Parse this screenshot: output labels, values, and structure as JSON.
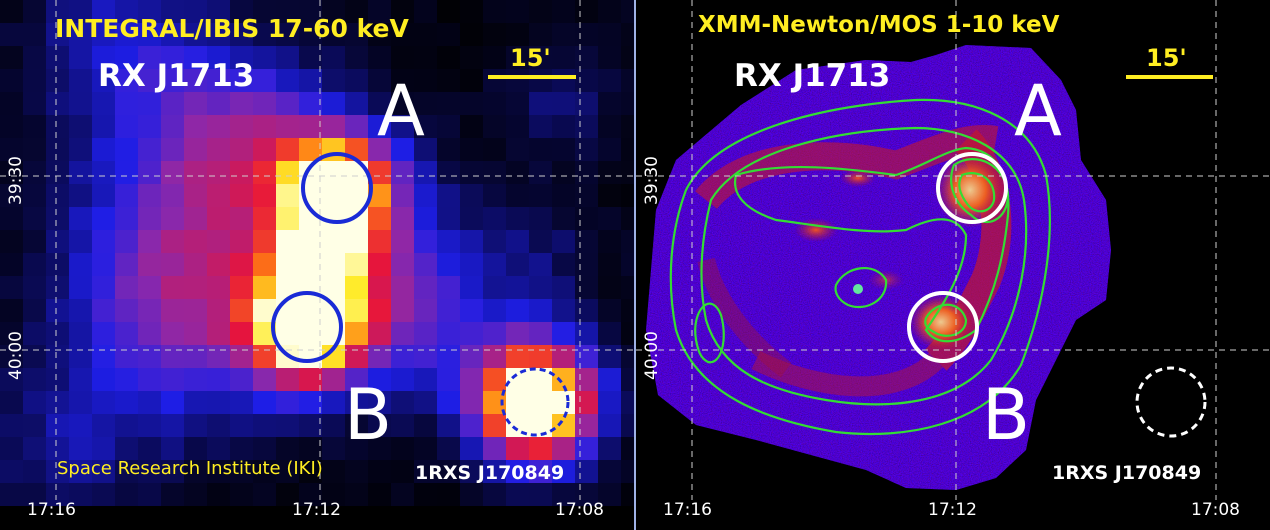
{
  "left_panel": {
    "band_label": "INTEGRAL/IBIS 17-60 keV",
    "source_label": "RX J1713",
    "region_a": "A",
    "region_b": "B",
    "scale_label": "15'",
    "point_source": "1RXS J170849",
    "credit": "Space Research Institute (IKI)",
    "ra_ticks": [
      "17:16",
      "17:12",
      "17:08"
    ],
    "dec_ticks": [
      "39:30",
      "40:00"
    ]
  },
  "right_panel": {
    "band_label": "XMM-Newton/MOS 1-10 keV",
    "source_label": "RX J1713",
    "region_a": "A",
    "region_b": "B",
    "scale_label": "15'",
    "point_source": "1RXS J170849",
    "ra_ticks": [
      "17:16",
      "17:12",
      "17:08"
    ],
    "dec_ticks": [
      "39:30",
      "40:00"
    ]
  },
  "colors": {
    "label_yellow": "#ffee22",
    "circle_blue": "#1a2bd6",
    "contour_green": "#33dd33",
    "grid": "#cfcfcf"
  }
}
